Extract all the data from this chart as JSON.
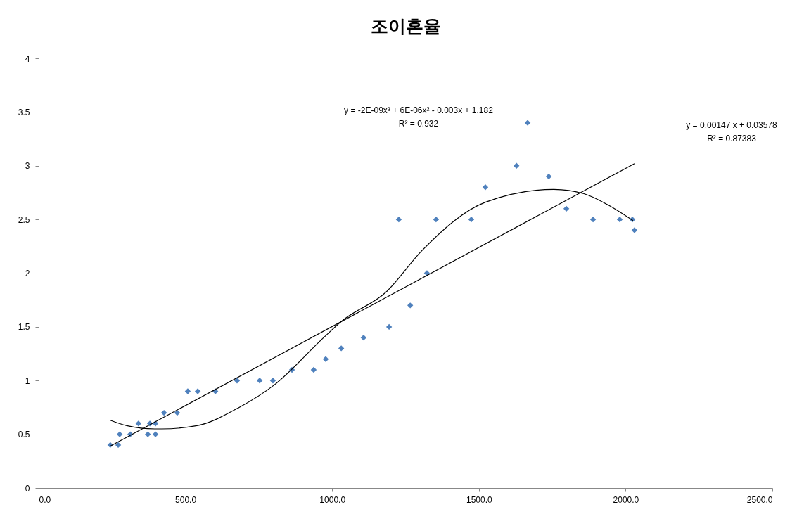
{
  "chart_data": {
    "type": "scatter",
    "title": "조이혼율",
    "series": [
      {
        "color": "#4f81bd",
        "marker": "diamond",
        "x": [
          244,
          271,
          276,
          312,
          340,
          372,
          379,
          398,
          398,
          427,
          472,
          508,
          542,
          602,
          676,
          753,
          798,
          863,
          937,
          978,
          1031,
          1107,
          1194,
          1227,
          1266,
          1323,
          1354,
          1474,
          1522,
          1628,
          1666,
          1738,
          1798,
          1889,
          1980,
          2023,
          2030
        ],
        "values": [
          0.4,
          0.4,
          0.5,
          0.5,
          0.6,
          0.5,
          0.6,
          0.6,
          0.5,
          0.7,
          0.7,
          0.9,
          0.9,
          0.9,
          1.0,
          1.0,
          1.0,
          1.1,
          1.1,
          1.2,
          1.3,
          1.4,
          1.5,
          2.5,
          1.7,
          2.0,
          2.5,
          2.5,
          2.8,
          3.0,
          3.4,
          2.9,
          2.6,
          2.5,
          2.5,
          2.5,
          2.4
        ]
      },
      {
        "type": "line",
        "color": "#000000",
        "x": [
          244,
          2030
        ],
        "values": [
          0.39,
          3.02
        ]
      },
      {
        "type": "line",
        "color": "#000000",
        "x": [
          244,
          300,
          395,
          420,
          539,
          683,
          803,
          971,
          1031,
          1186,
          1306,
          1522,
          1755,
          1858,
          1937,
          2025
        ],
        "values": [
          0.63,
          0.58,
          0.55,
          0.55,
          0.58,
          0.75,
          0.96,
          1.4,
          1.55,
          1.83,
          2.21,
          2.66,
          2.78,
          2.74,
          2.64,
          2.49
        ]
      }
    ],
    "xlim": [
      0,
      2500
    ],
    "xticks": [
      {
        "value": 0,
        "label": "0.0"
      },
      {
        "value": 500,
        "label": "500.0"
      },
      {
        "value": 1000,
        "label": "1000.0"
      },
      {
        "value": 1500,
        "label": "1500.0"
      },
      {
        "value": 2000,
        "label": "2000.0"
      },
      {
        "value": 2500,
        "label": "2500.0"
      }
    ],
    "ylim": [
      0,
      4
    ],
    "yticks": [
      0,
      0.5,
      1,
      1.5,
      2,
      2.5,
      3,
      3.5,
      4
    ],
    "grid": false,
    "line_style": "solid",
    "annotations": [
      "y = -2E-09x³ + 6E-06x² - 0.003x + 1.182",
      "R² = 0.932",
      "y = 0.00147 x + 0.03578",
      "R² = 0.87383"
    ]
  }
}
